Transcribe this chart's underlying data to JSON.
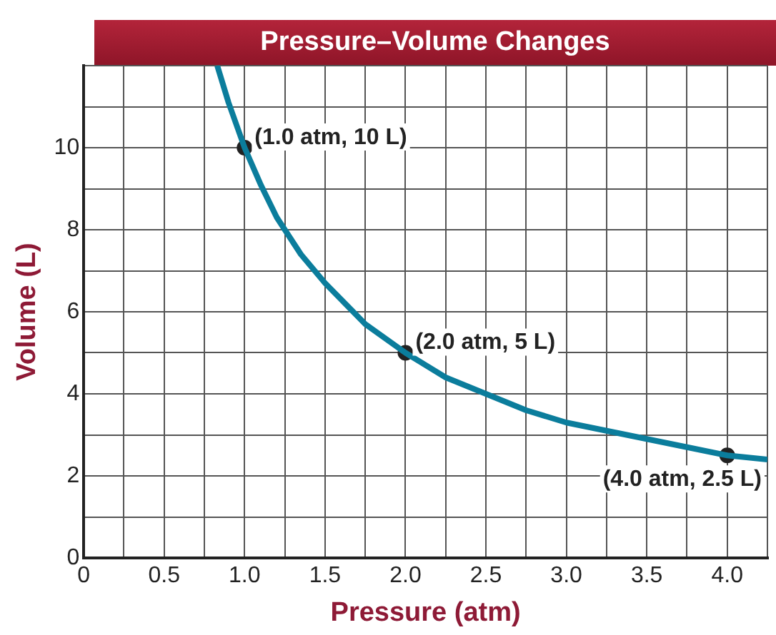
{
  "chart_data": {
    "type": "line",
    "title": "Pressure–Volume Changes",
    "xlabel": "Pressure (atm)",
    "ylabel": "Volume (L)",
    "xlim": [
      0,
      4.25
    ],
    "ylim": [
      0,
      12
    ],
    "xticks": [
      0,
      {
        "value": 0.25,
        "label": null
      },
      0.5,
      {
        "value": 0.75,
        "label": null
      },
      {
        "value": 1,
        "label": "1.0"
      },
      {
        "value": 1.25,
        "label": null
      },
      1.5,
      {
        "value": 1.75,
        "label": null
      },
      {
        "value": 2,
        "label": "2.0"
      },
      {
        "value": 2.25,
        "label": null
      },
      2.5,
      {
        "value": 2.75,
        "label": null
      },
      {
        "value": 3,
        "label": "3.0"
      },
      {
        "value": 3.25,
        "label": null
      },
      3.5,
      {
        "value": 3.75,
        "label": null
      },
      {
        "value": 4,
        "label": "4.0"
      },
      {
        "value": 4.25,
        "label": null
      }
    ],
    "yticks": [
      0,
      {
        "value": 1,
        "label": null
      },
      2,
      {
        "value": 3,
        "label": null
      },
      4,
      {
        "value": 5,
        "label": null
      },
      6,
      {
        "value": 7,
        "label": null
      },
      8,
      {
        "value": 9,
        "label": null
      },
      10,
      {
        "value": 11,
        "label": null
      },
      {
        "value": 12,
        "label": null
      }
    ],
    "grid": true,
    "legend": false,
    "series": [
      {
        "color": "#0b7d9c",
        "marker": "none",
        "x": [
          0.83,
          0.9,
          1,
          1.1,
          1.2,
          1.35,
          1.5,
          1.75,
          2,
          2.25,
          2.5,
          2.75,
          3,
          3.25,
          3.5,
          3.75,
          4,
          4.25
        ],
        "values": [
          12,
          11.1,
          10,
          9.1,
          8.3,
          7.4,
          6.7,
          5.7,
          5,
          4.4,
          4,
          3.6,
          3.3,
          3.1,
          2.9,
          2.7,
          2.5,
          2.4
        ]
      },
      {
        "type": "scatter",
        "color": "#222222",
        "marker": "circle",
        "x": [
          1,
          2,
          4
        ],
        "values": [
          10,
          5,
          2.5
        ]
      }
    ],
    "annotations": [
      {
        "text": "(1.0 atm, 10 L)",
        "x": 1,
        "y": 10
      },
      {
        "text": "(2.0 atm, 5 L)",
        "x": 2,
        "y": 5
      },
      {
        "text": "(4.0 atm, 2.5 L)",
        "x": 4,
        "y": 2.5
      }
    ]
  }
}
